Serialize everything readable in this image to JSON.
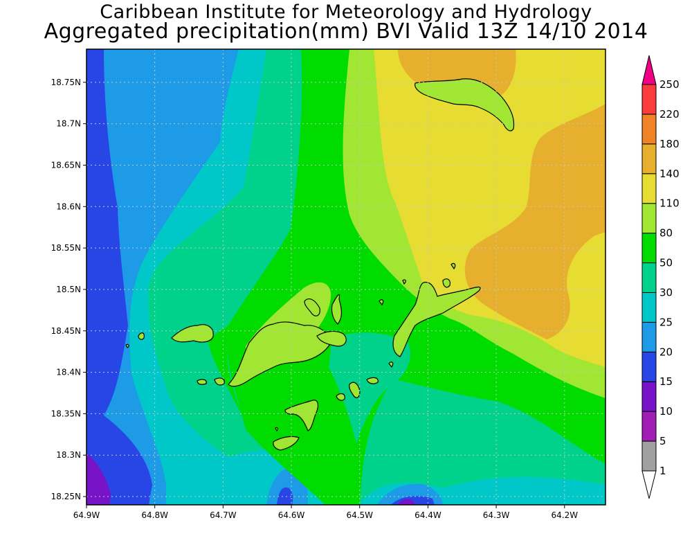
{
  "title": {
    "line1": "Caribbean Institute for Meteorology and Hydrology",
    "line2": "Aggregated precipitation(mm) BVI Valid 13Z 14/10 2014"
  },
  "map": {
    "lon_range": [
      -64.9,
      -64.14
    ],
    "lat_range": [
      18.24,
      18.79
    ],
    "grid": true,
    "x_ticks": [
      {
        "value": -64.9,
        "label": "64.9W"
      },
      {
        "value": -64.8,
        "label": "64.8W"
      },
      {
        "value": -64.7,
        "label": "64.7W"
      },
      {
        "value": -64.6,
        "label": "64.6W"
      },
      {
        "value": -64.5,
        "label": "64.5W"
      },
      {
        "value": -64.4,
        "label": "64.4W"
      },
      {
        "value": -64.3,
        "label": "64.3W"
      },
      {
        "value": -64.2,
        "label": "64.2W"
      }
    ],
    "y_ticks": [
      {
        "value": 18.25,
        "label": "18.25N"
      },
      {
        "value": 18.3,
        "label": "18.3N"
      },
      {
        "value": 18.35,
        "label": "18.35N"
      },
      {
        "value": 18.4,
        "label": "18.4N"
      },
      {
        "value": 18.45,
        "label": "18.45N"
      },
      {
        "value": 18.5,
        "label": "18.5N"
      },
      {
        "value": 18.55,
        "label": "18.55N"
      },
      {
        "value": 18.6,
        "label": "18.6N"
      },
      {
        "value": 18.65,
        "label": "18.65N"
      },
      {
        "value": 18.7,
        "label": "18.7N"
      },
      {
        "value": 18.75,
        "label": "18.75N"
      }
    ]
  },
  "colorbar": {
    "levels": [
      {
        "label": "1",
        "color": "#a0a0a0"
      },
      {
        "label": "5",
        "color": "#a01eb4"
      },
      {
        "label": "10",
        "color": "#7814c8"
      },
      {
        "label": "15",
        "color": "#2846e6"
      },
      {
        "label": "20",
        "color": "#1e9be6"
      },
      {
        "label": "25",
        "color": "#00c8c8"
      },
      {
        "label": "30",
        "color": "#00d28c"
      },
      {
        "label": "50",
        "color": "#00dc00"
      },
      {
        "label": "80",
        "color": "#a0e632"
      },
      {
        "label": "110",
        "color": "#e6dc32"
      },
      {
        "label": "140",
        "color": "#e6af2d"
      },
      {
        "label": "180",
        "color": "#f08228"
      },
      {
        "label": "220",
        "color": "#fa3c3c"
      },
      {
        "label": "250",
        "color": "#f00082"
      }
    ],
    "under_color": "#ffffff",
    "over_color": "#f00082"
  },
  "field_colors": {
    "c15": "#2846e6",
    "c10": "#7814c8",
    "c20": "#1e9be6",
    "c25": "#00c8c8",
    "c30": "#00d28c",
    "c50": "#00dc00",
    "c80": "#a0e632",
    "c110": "#e6dc32",
    "c140": "#e6af2d",
    "land": "#a0e632",
    "coast": "#000000"
  }
}
